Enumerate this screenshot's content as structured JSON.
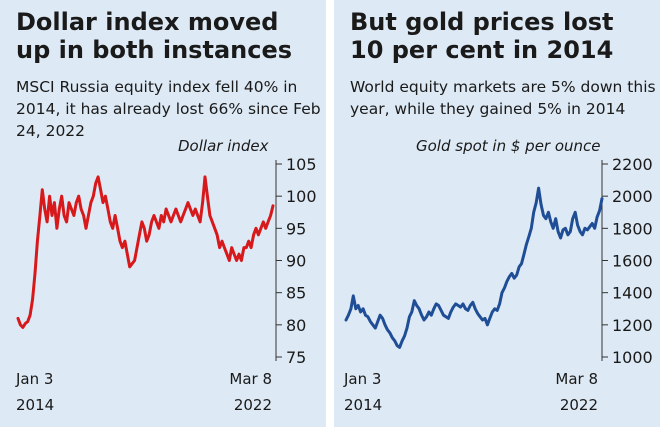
{
  "panels": [
    {
      "title": "Dollar index moved up in both instances",
      "subtitle": "MSCI Russia equity index fell 40% in 2014, it has already lost 66% since Feb 24, 2022"
    },
    {
      "title": "But gold prices lost 10 per cent in 2014",
      "subtitle": "World equity markets are 5% down this year, while they gained 5% in 2014"
    }
  ],
  "chart_data": [
    {
      "type": "line",
      "title": "Dollar index",
      "x_start": "Jan 3 2014",
      "x_end": "Mar 8 2022",
      "x_tick_labels": [
        [
          "Jan 3",
          "2014"
        ],
        [
          "Mar 8",
          "2022"
        ]
      ],
      "ylim": [
        75,
        105
      ],
      "y_ticks": [
        75,
        80,
        85,
        90,
        95,
        100,
        105
      ],
      "color": "#d7191c",
      "series": [
        {
          "values": [
            81,
            80,
            79.6,
            80.2,
            80.5,
            81.5,
            84,
            88,
            93,
            97,
            101,
            98,
            96,
            100,
            97,
            99,
            95,
            98,
            100,
            97,
            96,
            99,
            98,
            97,
            99,
            100,
            98,
            97,
            95,
            97,
            99,
            100,
            102,
            103,
            101,
            99,
            100,
            98,
            96,
            95,
            97,
            95,
            93,
            92,
            93,
            91,
            89,
            89.5,
            90,
            92,
            94,
            96,
            95,
            93,
            94,
            96,
            97,
            96,
            95,
            97,
            96,
            98,
            97,
            96,
            97,
            98,
            97,
            96,
            97,
            98,
            99,
            98,
            97,
            98,
            97,
            96,
            99,
            103,
            100,
            97,
            96,
            95,
            94,
            92,
            93,
            92,
            91,
            90,
            92,
            91,
            90,
            91,
            90,
            92,
            92,
            93,
            92,
            94,
            95,
            94,
            95,
            96,
            95,
            96,
            97,
            98.5
          ]
        }
      ]
    },
    {
      "type": "line",
      "title": "Gold spot in $ per ounce",
      "x_start": "Jan 3 2014",
      "x_end": "Mar 8 2022",
      "x_tick_labels": [
        [
          "Jan 3",
          "2014"
        ],
        [
          "Mar 8",
          "2022"
        ]
      ],
      "ylim": [
        1000,
        2200
      ],
      "y_ticks": [
        1000,
        1200,
        1400,
        1600,
        1800,
        2000,
        2200
      ],
      "color": "#1f4e96",
      "series": [
        {
          "values": [
            1230,
            1260,
            1300,
            1380,
            1300,
            1320,
            1280,
            1300,
            1260,
            1250,
            1220,
            1200,
            1180,
            1220,
            1260,
            1240,
            1200,
            1170,
            1150,
            1120,
            1100,
            1070,
            1060,
            1100,
            1130,
            1180,
            1250,
            1280,
            1350,
            1320,
            1300,
            1260,
            1230,
            1250,
            1280,
            1260,
            1300,
            1330,
            1320,
            1290,
            1260,
            1250,
            1240,
            1280,
            1310,
            1330,
            1320,
            1310,
            1330,
            1300,
            1290,
            1320,
            1340,
            1300,
            1270,
            1250,
            1230,
            1240,
            1200,
            1240,
            1280,
            1300,
            1290,
            1330,
            1400,
            1430,
            1470,
            1500,
            1520,
            1490,
            1510,
            1560,
            1580,
            1640,
            1700,
            1750,
            1800,
            1900,
            1960,
            2050,
            1950,
            1880,
            1860,
            1900,
            1840,
            1800,
            1860,
            1780,
            1740,
            1790,
            1800,
            1760,
            1780,
            1860,
            1900,
            1820,
            1780,
            1760,
            1800,
            1790,
            1810,
            1830,
            1800,
            1870,
            1910,
            1985
          ]
        }
      ]
    }
  ]
}
